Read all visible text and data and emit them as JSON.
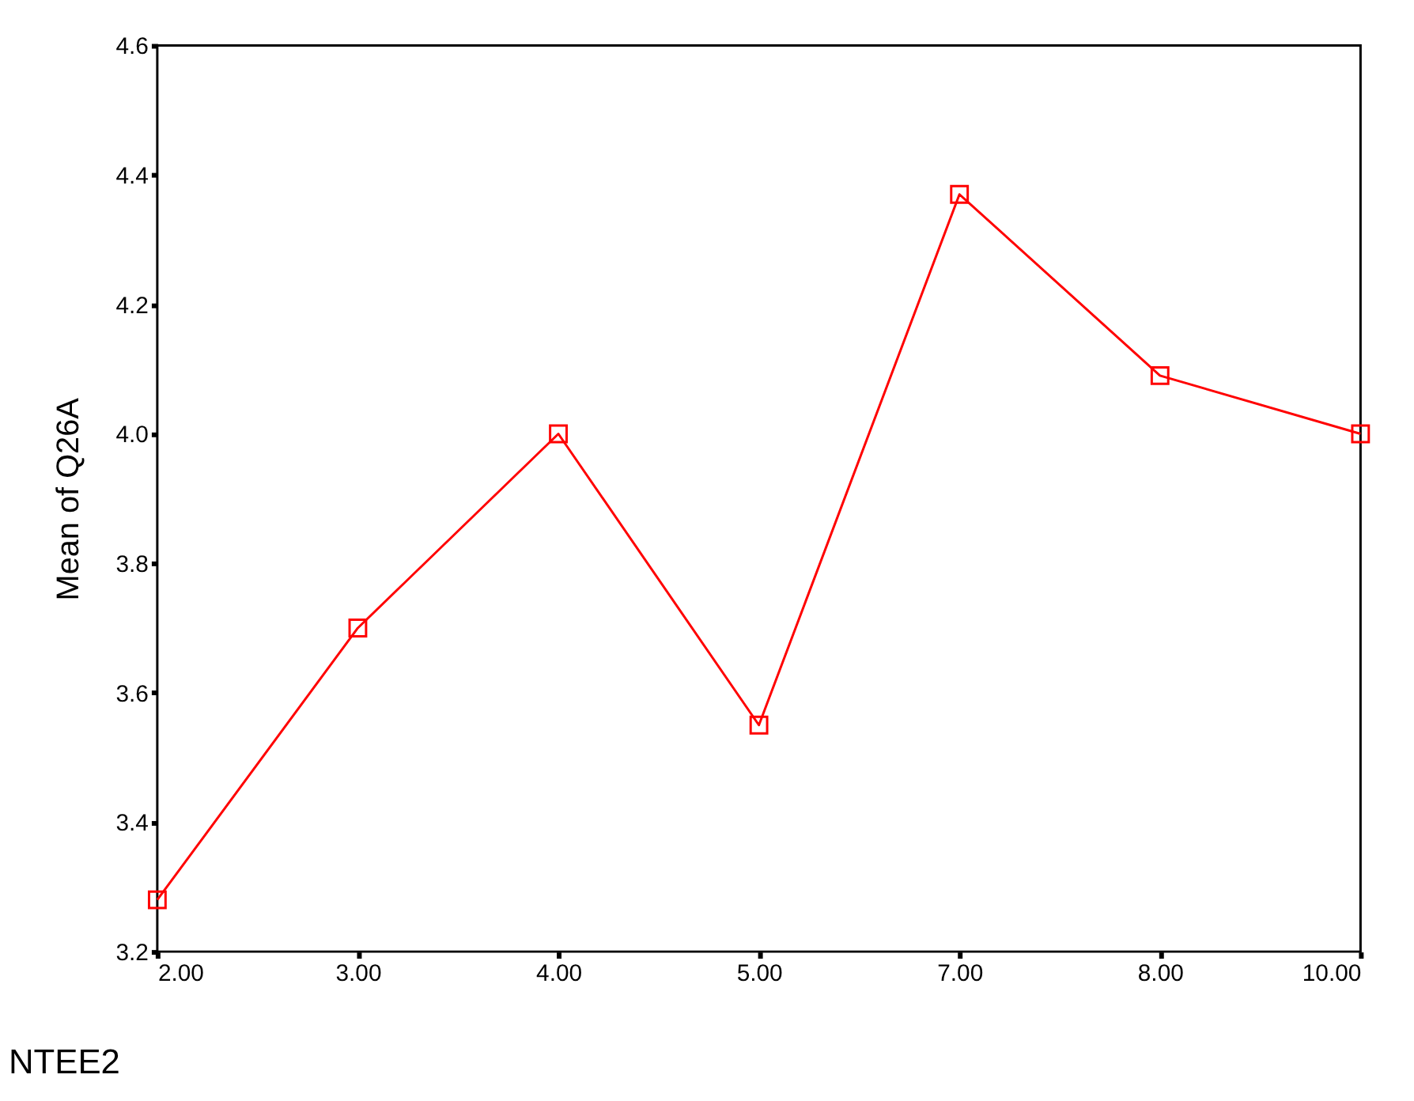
{
  "chart_data": {
    "type": "line",
    "xlabel": "NTEE2",
    "ylabel": "Mean of Q26A",
    "categories": [
      "2.00",
      "3.00",
      "4.00",
      "5.00",
      "7.00",
      "8.00",
      "10.00"
    ],
    "series": [
      {
        "color": "#ff0000",
        "values": [
          3.28,
          3.7,
          4.0,
          3.55,
          4.37,
          4.09,
          4.0
        ]
      }
    ],
    "ylim": [
      3.2,
      4.6
    ],
    "yticks": [
      3.2,
      3.4,
      3.6,
      3.8,
      {
        "value": 4.0,
        "label": "4.0"
      },
      4.2,
      4.4,
      4.6
    ],
    "marker": "square",
    "line_style": "solid",
    "grid": false
  }
}
